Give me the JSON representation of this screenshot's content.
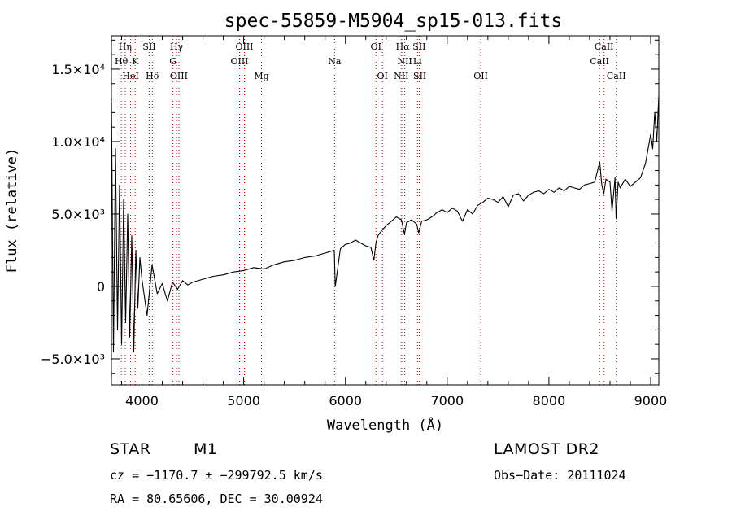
{
  "chart_data": {
    "type": "line",
    "title": "spec-55859-M5904_sp15-013.fits",
    "xlabel": "Wavelength (Å)",
    "ylabel": "Flux (relative)",
    "xlim": [
      3700,
      9080
    ],
    "ylim": [
      -6800,
      17300
    ],
    "x_ticks": [
      4000,
      5000,
      6000,
      7000,
      8000,
      9000
    ],
    "y_ticks": [
      {
        "value": 15000,
        "label": "1.5×10⁴"
      },
      {
        "value": 10000,
        "label": "1.0×10⁴"
      },
      {
        "value": 5000,
        "label": "5.0×10³"
      },
      {
        "value": 0,
        "label": "0"
      },
      {
        "value": -5000,
        "label": "−5.0×10³"
      }
    ],
    "grid": false,
    "series": [
      {
        "x": [
          3700,
          3720,
          3740,
          3760,
          3780,
          3800,
          3820,
          3840,
          3860,
          3880,
          3900,
          3920,
          3940,
          3960,
          3980,
          4000,
          4050,
          4100,
          4150,
          4200,
          4250,
          4300,
          4350,
          4400,
          4450,
          4500,
          4600,
          4700,
          4800,
          4900,
          5000,
          5100,
          5200,
          5300,
          5400,
          5500,
          5600,
          5700,
          5800,
          5850,
          5890,
          5900,
          5950,
          6000,
          6050,
          6100,
          6150,
          6200,
          6250,
          6280,
          6300,
          6320,
          6350,
          6400,
          6450,
          6500,
          6550,
          6580,
          6600,
          6650,
          6700,
          6720,
          6750,
          6800,
          6850,
          6900,
          6950,
          7000,
          7050,
          7100,
          7150,
          7200,
          7250,
          7300,
          7350,
          7400,
          7450,
          7500,
          7550,
          7600,
          7650,
          7700,
          7750,
          7800,
          7850,
          7900,
          7950,
          8000,
          8050,
          8100,
          8150,
          8200,
          8250,
          8300,
          8350,
          8400,
          8450,
          8500,
          8520,
          8540,
          8560,
          8600,
          8620,
          8650,
          8660,
          8680,
          8700,
          8750,
          8800,
          8850,
          8900,
          8950,
          9000,
          9020,
          9040,
          9060,
          9080
        ],
        "y": [
          13000,
          -4500,
          9500,
          -3000,
          7000,
          -4000,
          6000,
          -2500,
          5000,
          -3500,
          3500,
          -4500,
          2500,
          -1500,
          2000,
          500,
          -2000,
          1500,
          -500,
          200,
          -1000,
          300,
          -200,
          400,
          100,
          300,
          500,
          700,
          800,
          1000,
          1100,
          1300,
          1200,
          1500,
          1700,
          1800,
          2000,
          2100,
          2300,
          2400,
          2500,
          0,
          2600,
          2900,
          3000,
          3200,
          3000,
          2800,
          2700,
          1800,
          3000,
          3500,
          3800,
          4200,
          4500,
          4800,
          4600,
          3600,
          4400,
          4600,
          4300,
          3700,
          4500,
          4600,
          4800,
          5100,
          5300,
          5100,
          5400,
          5200,
          4500,
          5300,
          5000,
          5600,
          5800,
          6100,
          6000,
          5800,
          6200,
          5500,
          6300,
          6400,
          5900,
          6300,
          6500,
          6600,
          6400,
          6700,
          6500,
          6800,
          6600,
          6900,
          6800,
          6700,
          7000,
          7100,
          7200,
          8600,
          7000,
          6400,
          7400,
          7200,
          5200,
          7500,
          4700,
          7200,
          6800,
          7400,
          6900,
          7200,
          7500,
          8500,
          10500,
          9500,
          12000,
          10000,
          13200
        ]
      }
    ],
    "line_markers": [
      {
        "label": "Hη",
        "x": 3835,
        "row": 0
      },
      {
        "label": "Hθ",
        "x": 3797,
        "row": 1
      },
      {
        "label": "K",
        "x": 3934,
        "row": 1
      },
      {
        "label": "HeI",
        "x": 3889,
        "row": 2
      },
      {
        "label": "SII",
        "x": 4072,
        "row": 0
      },
      {
        "label": "Hδ",
        "x": 4102,
        "row": 2
      },
      {
        "label": "Hγ",
        "x": 4340,
        "row": 0
      },
      {
        "label": "G",
        "x": 4305,
        "row": 1
      },
      {
        "label": "OIII",
        "x": 4363,
        "row": 2
      },
      {
        "label": "OIII",
        "x": 5007,
        "row": 0
      },
      {
        "label": "OIII",
        "x": 4959,
        "row": 1
      },
      {
        "label": "Mg",
        "x": 5175,
        "row": 2
      },
      {
        "label": "Na",
        "x": 5893,
        "row": 1
      },
      {
        "label": "OI",
        "x": 6300,
        "row": 0
      },
      {
        "label": "OI",
        "x": 6364,
        "row": 2
      },
      {
        "label": "Hα",
        "x": 6563,
        "row": 0
      },
      {
        "label": "SII",
        "x": 6725,
        "row": 0
      },
      {
        "label": "NII",
        "x": 6583,
        "row": 1
      },
      {
        "label": "Li",
        "x": 6708,
        "row": 1
      },
      {
        "label": "NII",
        "x": 6548,
        "row": 2
      },
      {
        "label": "SII",
        "x": 6731,
        "row": 2
      },
      {
        "label": "OII",
        "x": 7330,
        "row": 2
      },
      {
        "label": "CaII",
        "x": 8542,
        "row": 0
      },
      {
        "label": "CaII",
        "x": 8498,
        "row": 1
      },
      {
        "label": "CaII",
        "x": 8662,
        "row": 2
      }
    ],
    "marker_color": "#cc0000",
    "line_color": "#000000"
  },
  "info": {
    "object_class": "STAR",
    "subclass": "M1",
    "survey": "LAMOST DR2",
    "redshift_line": "cz = −1170.7 ± −299792.5 km/s",
    "obs_date": "Obs−Date: 20111024",
    "coords": "RA =  80.65606, DEC =  30.00924"
  }
}
